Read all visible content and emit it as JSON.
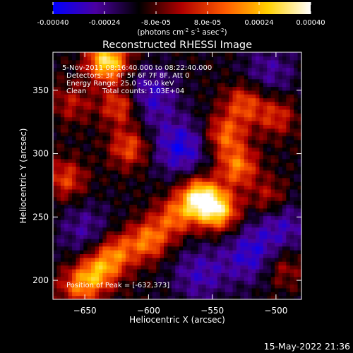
{
  "chart_data": {
    "type": "heatmap",
    "title": "Reconstructed RHESSI Image",
    "xlabel": "Heliocentric X (arcsec)",
    "ylabel": "Heliocentric Y (arcsec)",
    "xlim": [
      -675,
      -480
    ],
    "ylim": [
      185,
      380
    ],
    "xticks": [
      -650,
      -600,
      -550,
      -500
    ],
    "yticks": [
      200,
      250,
      300,
      350
    ],
    "colorbar": {
      "ticks": [
        -0.0004,
        -0.00024,
        -8e-05,
        8e-05,
        0.00024,
        0.0004
      ],
      "tick_labels": [
        "-0.00040",
        "-0.00024",
        "-8.0e-05",
        "8.0e-05",
        "0.00024",
        "0.00040"
      ],
      "unit_label": {
        "prefix": "(photons cm",
        "exp1": "-2",
        "mid1": " s",
        "exp2": "-1",
        "mid2": " asec",
        "exp3": "-2",
        "suffix": ")"
      },
      "colors": [
        "#0000ff",
        "#4b00a0",
        "#000000",
        "#b00000",
        "#ff5a00",
        "#ffd000",
        "#ffffff"
      ]
    },
    "annotations": {
      "time_range": "5-Nov-2011 08:16:40.000 to 08:22:40.000",
      "detectors": "Detectors: 3F 4F 5F 6F 7F 8F, Att 0",
      "energy": "Energy Range: 25.0 - 50.0 keV",
      "clean": "Clean",
      "counts": "Total counts: 1.03E+04",
      "peak": "Position of Peak = [-632,373]"
    },
    "peak": [
      -632,
      373
    ],
    "sources": [
      {
        "x": -560,
        "y": 265,
        "intensity": 1.0
      },
      {
        "x": -545,
        "y": 255,
        "intensity": 0.8
      },
      {
        "x": -580,
        "y": 250,
        "intensity": 0.5
      },
      {
        "x": -600,
        "y": 232,
        "intensity": 0.6
      },
      {
        "x": -625,
        "y": 222,
        "intensity": 0.55
      },
      {
        "x": -640,
        "y": 207,
        "intensity": 0.65
      },
      {
        "x": -655,
        "y": 195,
        "intensity": 0.5
      },
      {
        "x": -530,
        "y": 290,
        "intensity": 0.6
      },
      {
        "x": -540,
        "y": 315,
        "intensity": 0.55
      },
      {
        "x": -525,
        "y": 340,
        "intensity": 0.5
      },
      {
        "x": -500,
        "y": 330,
        "intensity": 0.4
      },
      {
        "x": -622,
        "y": 338,
        "intensity": 0.55
      },
      {
        "x": -615,
        "y": 305,
        "intensity": 0.5
      },
      {
        "x": -632,
        "y": 373,
        "intensity": 0.95
      },
      {
        "x": -665,
        "y": 280,
        "intensity": 0.45
      },
      {
        "x": -660,
        "y": 340,
        "intensity": 0.3
      },
      {
        "x": -505,
        "y": 265,
        "intensity": 0.35
      },
      {
        "x": -495,
        "y": 210,
        "intensity": 0.3
      }
    ],
    "negative_regions": [
      {
        "x": -575,
        "y": 305,
        "intensity": 0.7
      },
      {
        "x": -600,
        "y": 345,
        "intensity": 0.6
      },
      {
        "x": -520,
        "y": 220,
        "intensity": 0.6
      },
      {
        "x": -495,
        "y": 245,
        "intensity": 0.5
      },
      {
        "x": -650,
        "y": 240,
        "intensity": 0.4
      },
      {
        "x": -560,
        "y": 205,
        "intensity": 0.5
      },
      {
        "x": -505,
        "y": 365,
        "intensity": 0.4
      }
    ]
  },
  "footer": {
    "timestamp": "15-May-2022 21:36"
  }
}
